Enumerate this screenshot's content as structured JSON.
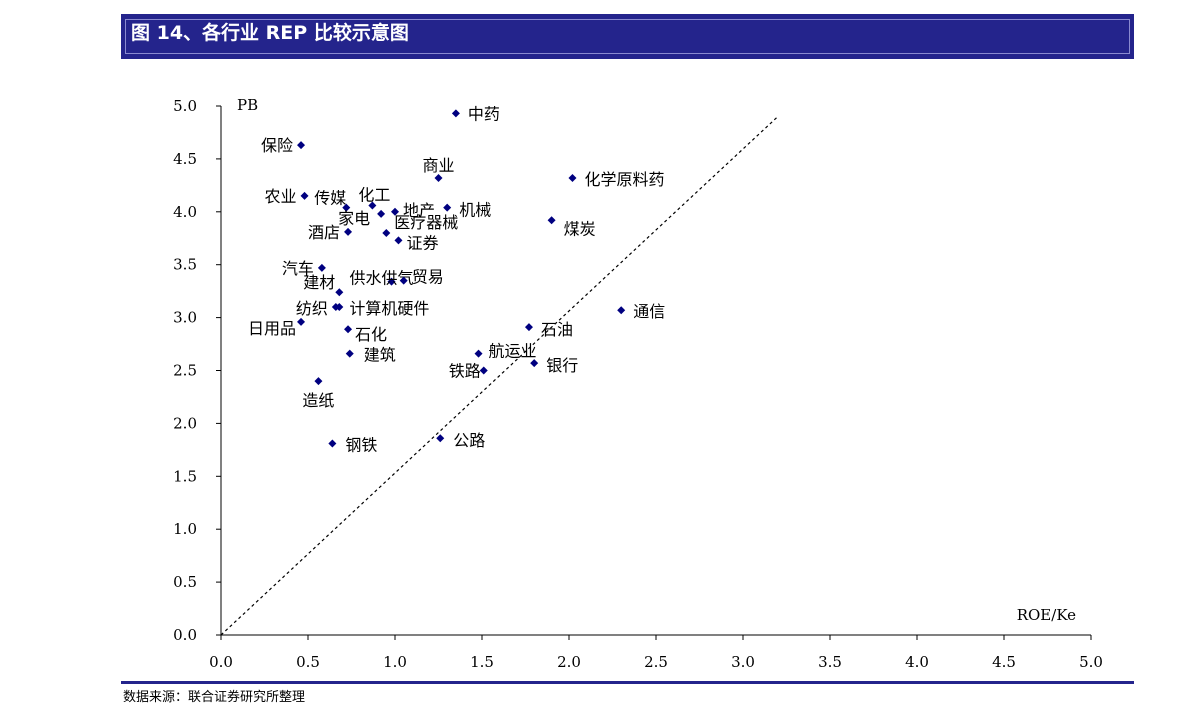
{
  "header": {
    "title": "图 14、各行业 REP 比较示意图"
  },
  "footer": {
    "source": "数据来源：联合证券研究所整理"
  },
  "colors": {
    "header_bg": "#24248c",
    "marker": "#000080",
    "axis": "#000000",
    "diagonal": "#000000"
  },
  "chart_data": {
    "type": "scatter",
    "title": "",
    "xlabel": "ROE/Ke",
    "ylabel": "PB",
    "xlim": [
      0.0,
      5.0
    ],
    "ylim": [
      0.0,
      5.0
    ],
    "x_ticks": [
      "0.0",
      "0.5",
      "1.0",
      "1.5",
      "2.0",
      "2.5",
      "3.0",
      "3.5",
      "4.0",
      "4.5",
      "5.0"
    ],
    "y_ticks": [
      "0.0",
      "0.5",
      "1.0",
      "1.5",
      "2.0",
      "2.5",
      "3.0",
      "3.5",
      "4.0",
      "4.5",
      "5.0"
    ],
    "grid": false,
    "reference_line": {
      "style": "dashed",
      "from": [
        0.0,
        0.0
      ],
      "to": [
        3.2,
        4.9
      ]
    },
    "points": [
      {
        "label": "中药",
        "x": 1.35,
        "y": 4.93
      },
      {
        "label": "保险",
        "x": 0.46,
        "y": 4.63
      },
      {
        "label": "商业",
        "x": 1.25,
        "y": 4.32
      },
      {
        "label": "化学原料药",
        "x": 2.02,
        "y": 4.32
      },
      {
        "label": "农业",
        "x": 0.48,
        "y": 4.15
      },
      {
        "label": "传媒",
        "x": 0.72,
        "y": 4.04
      },
      {
        "label": "化工",
        "x": 0.87,
        "y": 4.06
      },
      {
        "label": "家电",
        "x": 0.92,
        "y": 3.98
      },
      {
        "label": "地产",
        "x": 1.0,
        "y": 4.0
      },
      {
        "label": "机械",
        "x": 1.3,
        "y": 4.04
      },
      {
        "label": "煤炭",
        "x": 1.9,
        "y": 3.92
      },
      {
        "label": "医疗器械",
        "x": 0.95,
        "y": 3.8
      },
      {
        "label": "酒店",
        "x": 0.73,
        "y": 3.81
      },
      {
        "label": "证券",
        "x": 1.02,
        "y": 3.73
      },
      {
        "label": "汽车",
        "x": 0.58,
        "y": 3.47
      },
      {
        "label": "供水供气",
        "x": 0.98,
        "y": 3.34
      },
      {
        "label": "贸易",
        "x": 1.05,
        "y": 3.35
      },
      {
        "label": "建材",
        "x": 0.68,
        "y": 3.24
      },
      {
        "label": "纺织",
        "x": 0.66,
        "y": 3.1
      },
      {
        "label": "计算机硬件",
        "x": 0.68,
        "y": 3.1
      },
      {
        "label": "通信",
        "x": 2.3,
        "y": 3.07
      },
      {
        "label": "日用品",
        "x": 0.46,
        "y": 2.96
      },
      {
        "label": "石化",
        "x": 0.73,
        "y": 2.89
      },
      {
        "label": "石油",
        "x": 1.77,
        "y": 2.91
      },
      {
        "label": "建筑",
        "x": 0.74,
        "y": 2.66
      },
      {
        "label": "航运业",
        "x": 1.48,
        "y": 2.66
      },
      {
        "label": "银行",
        "x": 1.8,
        "y": 2.57
      },
      {
        "label": "铁路",
        "x": 1.51,
        "y": 2.5
      },
      {
        "label": "造纸",
        "x": 0.56,
        "y": 2.4
      },
      {
        "label": "钢铁",
        "x": 0.64,
        "y": 1.81
      },
      {
        "label": "公路",
        "x": 1.26,
        "y": 1.86
      }
    ]
  }
}
